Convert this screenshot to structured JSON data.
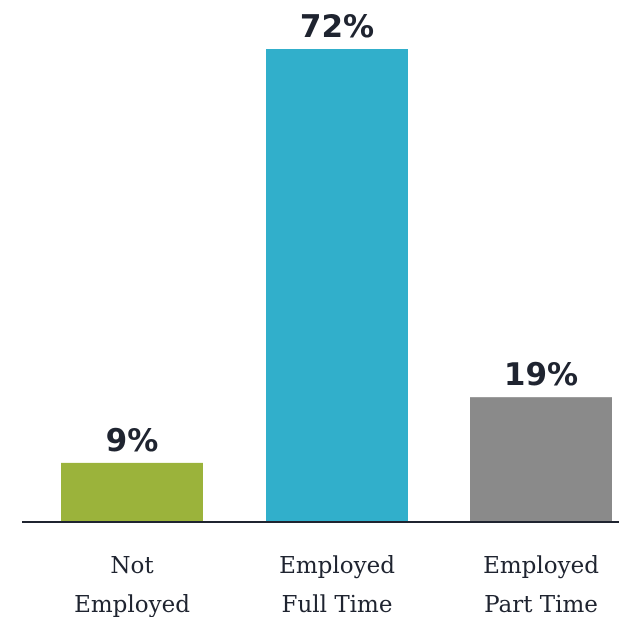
{
  "chart_data": {
    "type": "bar",
    "categories": [
      [
        "Not",
        "Employed"
      ],
      [
        "Employed",
        "Full Time"
      ],
      [
        "Employed",
        "Part Time"
      ]
    ],
    "values": [
      9,
      72,
      19
    ],
    "value_labels": [
      "9%",
      "72%",
      "19%"
    ],
    "colors": [
      "#9bb33b",
      "#31afcb",
      "#8a8a8a"
    ],
    "ylim": [
      0,
      72
    ],
    "grid": false,
    "legend": "none"
  }
}
